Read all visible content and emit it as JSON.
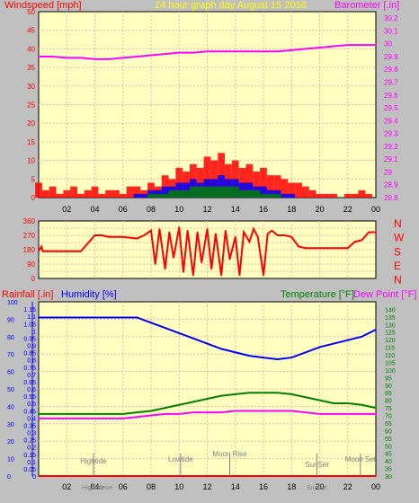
{
  "colors": {
    "background": "#c0c0c0",
    "plot": "#ffffc0",
    "grid": "#f0b0b0",
    "wind": "#ff0000",
    "gust_mid": "#0000ff",
    "gust_low": "#008000",
    "barometer": "#ff00ff",
    "direction": "#ff0000",
    "humidity": "#0000ff",
    "temperature": "#008000",
    "dewpoint": "#ff00ff",
    "rainfall": "#ff0000",
    "axis_text": "#000000",
    "events": "#808080"
  },
  "chart_data": [
    {
      "type": "line",
      "title": "24 hour graph day   August 15 2018",
      "ylabel_left": "Windspeed [mph]",
      "ylabel_right": "Barometer [.in]",
      "x_ticks": [
        "02",
        "04",
        "06",
        "08",
        "10",
        "12",
        "14",
        "16",
        "18",
        "20",
        "22",
        "00"
      ],
      "ylim_left": [
        0,
        50
      ],
      "yticks_left": [
        0,
        5,
        10,
        15,
        20,
        25,
        30,
        35,
        40,
        45,
        50
      ],
      "ylim_right": [
        28.8,
        30.25
      ],
      "yticks_right": [
        "28.8",
        "28.9",
        "29",
        "29.1",
        "29.2",
        "29.3",
        "29.4",
        "29.5",
        "29.6",
        "29.7",
        "29.8",
        "29.9",
        "30",
        "30.1",
        "30.2"
      ],
      "grid": true,
      "series": [
        {
          "axis": "right",
          "color_key": "barometer",
          "x": [
            0,
            1,
            2,
            3,
            4,
            5,
            6,
            7,
            8,
            9,
            10,
            11,
            12,
            13,
            14,
            15,
            16,
            17,
            18,
            19,
            20,
            21,
            22,
            23,
            24
          ],
          "values": [
            29.9,
            29.9,
            29.89,
            29.89,
            29.88,
            29.88,
            29.89,
            29.9,
            29.91,
            29.92,
            29.93,
            29.93,
            29.94,
            29.94,
            29.94,
            29.94,
            29.94,
            29.94,
            29.95,
            29.96,
            29.97,
            29.98,
            29.99,
            29.99,
            29.99
          ]
        },
        {
          "axis": "left",
          "color_key": "wind",
          "mode": "bars",
          "x": [
            0,
            0.5,
            1,
            1.5,
            2,
            2.5,
            3,
            3.5,
            4,
            4.5,
            5,
            5.5,
            6,
            6.5,
            7,
            7.5,
            8,
            8.5,
            9,
            9.5,
            10,
            10.5,
            11,
            11.5,
            12,
            12.5,
            13,
            13.5,
            14,
            14.5,
            15,
            15.5,
            16,
            16.5,
            17,
            17.5,
            18,
            18.5,
            19,
            19.5,
            20,
            20.5,
            21,
            21.5,
            22,
            22.5,
            23,
            23.5,
            24
          ],
          "values": [
            4,
            2,
            3,
            1,
            2,
            3,
            1,
            2,
            3,
            1,
            2,
            2,
            1,
            3,
            3,
            2,
            4,
            3,
            6,
            5,
            8,
            7,
            9,
            8,
            11,
            10,
            12,
            9,
            10,
            8,
            9,
            7,
            8,
            6,
            6,
            5,
            4,
            4,
            3,
            2,
            1,
            1,
            1,
            0,
            1,
            1,
            2,
            1,
            0
          ]
        },
        {
          "axis": "left",
          "color_key": "gust_mid",
          "mode": "bars",
          "x": [
            7,
            7.5,
            8,
            8.5,
            9,
            9.5,
            10,
            10.5,
            11,
            11.5,
            12,
            12.5,
            13,
            13.5,
            14,
            14.5,
            15,
            15.5,
            16,
            16.5,
            17,
            17.5,
            18
          ],
          "values": [
            1,
            1,
            2,
            2,
            3,
            3,
            4,
            4,
            5,
            4,
            5,
            5,
            6,
            5,
            5,
            4,
            4,
            3,
            3,
            2,
            2,
            1,
            1
          ]
        },
        {
          "axis": "left",
          "color_key": "gust_low",
          "mode": "bars",
          "x": [
            8,
            8.5,
            9,
            9.5,
            10,
            10.5,
            11,
            11.5,
            12,
            12.5,
            13,
            13.5,
            14,
            14.5,
            15,
            15.5,
            16,
            16.5,
            17
          ],
          "values": [
            1,
            1,
            1,
            2,
            2,
            2,
            3,
            3,
            3,
            3,
            3,
            3,
            3,
            2,
            2,
            2,
            1,
            1,
            1
          ]
        }
      ]
    },
    {
      "type": "line",
      "ylabel_right": [
        "N",
        "W",
        "S",
        "E",
        "N"
      ],
      "ylim": [
        0,
        360
      ],
      "yticks": [
        0,
        45,
        90,
        135,
        180,
        225,
        270,
        315,
        360
      ],
      "x_ticks": [
        "02",
        "04",
        "06",
        "08",
        "10",
        "12",
        "14",
        "16",
        "18",
        "20",
        "22",
        "00"
      ],
      "grid": true,
      "series": [
        {
          "color_key": "direction",
          "x": [
            0,
            0.2,
            0.3,
            1,
            2,
            3,
            4,
            4.5,
            5,
            6,
            7,
            7.5,
            8,
            8.3,
            8.6,
            9,
            9.3,
            9.6,
            10,
            10.3,
            10.6,
            11,
            11.3,
            11.6,
            12,
            12.3,
            12.6,
            13,
            13.3,
            13.6,
            14,
            14.3,
            14.6,
            15,
            15.3,
            15.6,
            16,
            16.3,
            16.6,
            17,
            17.5,
            18,
            18.5,
            19,
            19.5,
            20,
            20.5,
            21,
            21.5,
            22,
            22.5,
            23,
            23.5,
            24
          ],
          "values": [
            170,
            200,
            170,
            170,
            170,
            170,
            270,
            270,
            260,
            260,
            250,
            270,
            300,
            90,
            310,
            60,
            290,
            130,
            320,
            40,
            300,
            20,
            290,
            100,
            310,
            60,
            280,
            20,
            300,
            120,
            260,
            20,
            290,
            230,
            310,
            260,
            20,
            280,
            300,
            270,
            270,
            260,
            200,
            190,
            190,
            190,
            190,
            190,
            190,
            190,
            230,
            240,
            290,
            290
          ]
        }
      ]
    },
    {
      "type": "line",
      "ylabel_left_1": "Rainfall [.in]",
      "ylabel_left_2": "Humidity [%]",
      "ylabel_right_1": "Temperature [°F]",
      "ylabel_right_2": "Dew Point [°F]",
      "ylim_humidity": [
        0,
        100
      ],
      "yticks_humidity": [
        0,
        10,
        20,
        30,
        40,
        50,
        60,
        70,
        80,
        90,
        100
      ],
      "ylim_rain": [
        0,
        1.2
      ],
      "yticks_rain": [
        "0",
        "0.05",
        "0.1",
        "0.15",
        "0.2",
        "0.25",
        "0.3",
        "0.35",
        "0.4",
        "0.45",
        "0.5",
        "0.55",
        "0.6",
        "0.65",
        "0.7",
        "0.75",
        "0.8",
        "0.85",
        "0.9",
        "0.95",
        "1",
        "1.05",
        "1.1",
        "1.15"
      ],
      "ylim_temp": [
        30,
        145
      ],
      "yticks_temp": [
        30,
        35,
        40,
        45,
        50,
        55,
        60,
        65,
        70,
        75,
        80,
        85,
        90,
        95,
        100,
        105,
        110,
        115,
        120,
        125,
        130,
        135,
        140
      ],
      "x_ticks": [
        "02",
        "04",
        "06",
        "08",
        "10",
        "12",
        "14",
        "16",
        "18",
        "20",
        "22",
        "00"
      ],
      "grid": true,
      "series": [
        {
          "color_key": "humidity",
          "axis": "humidity",
          "x": [
            0,
            1,
            2,
            3,
            4,
            5,
            6,
            7,
            8,
            9,
            10,
            11,
            12,
            13,
            14,
            15,
            16,
            17,
            18,
            19,
            20,
            21,
            22,
            23,
            24
          ],
          "values": [
            91,
            91,
            91,
            91,
            91,
            91,
            91,
            91,
            88,
            85,
            82,
            79,
            76,
            73,
            71,
            69,
            68,
            67,
            68,
            71,
            74,
            76,
            78,
            80,
            84
          ]
        },
        {
          "color_key": "temperature",
          "axis": "temp",
          "x": [
            0,
            1,
            2,
            3,
            4,
            5,
            6,
            7,
            8,
            9,
            10,
            11,
            12,
            13,
            14,
            15,
            16,
            17,
            18,
            19,
            20,
            21,
            22,
            23,
            24
          ],
          "values": [
            71,
            71,
            71,
            71,
            71,
            71,
            71,
            72,
            73,
            75,
            77,
            79,
            81,
            83,
            84,
            85,
            85,
            85,
            84,
            82,
            80,
            78,
            78,
            77,
            75
          ]
        },
        {
          "color_key": "dewpoint",
          "axis": "temp",
          "x": [
            0,
            1,
            2,
            3,
            4,
            5,
            6,
            7,
            8,
            9,
            10,
            11,
            12,
            13,
            14,
            15,
            16,
            17,
            18,
            19,
            20,
            21,
            22,
            23,
            24
          ],
          "values": [
            68,
            68,
            68,
            68,
            68,
            68,
            68,
            69,
            70,
            71,
            71,
            72,
            72,
            72,
            73,
            73,
            73,
            73,
            73,
            72,
            71,
            71,
            71,
            71,
            71
          ]
        },
        {
          "color_key": "rainfall",
          "axis": "rain",
          "x": [
            0,
            24
          ],
          "values": [
            0,
            0
          ]
        }
      ],
      "events": [
        {
          "label": "Hightide",
          "x": 3.9
        },
        {
          "label": "Lowtide",
          "x": 10.1
        },
        {
          "label": "Moon Rise",
          "x": 13.6
        },
        {
          "label": "SunSet",
          "x": 19.8
        },
        {
          "label": "Moon Set",
          "x": 22.9
        }
      ],
      "bottom_labels": [
        {
          "label": "Hightide",
          "x": 3.9
        },
        {
          "label": "Sunrise",
          "x": 4.5
        },
        {
          "label": "SunSet",
          "x": 19.8
        }
      ]
    }
  ]
}
